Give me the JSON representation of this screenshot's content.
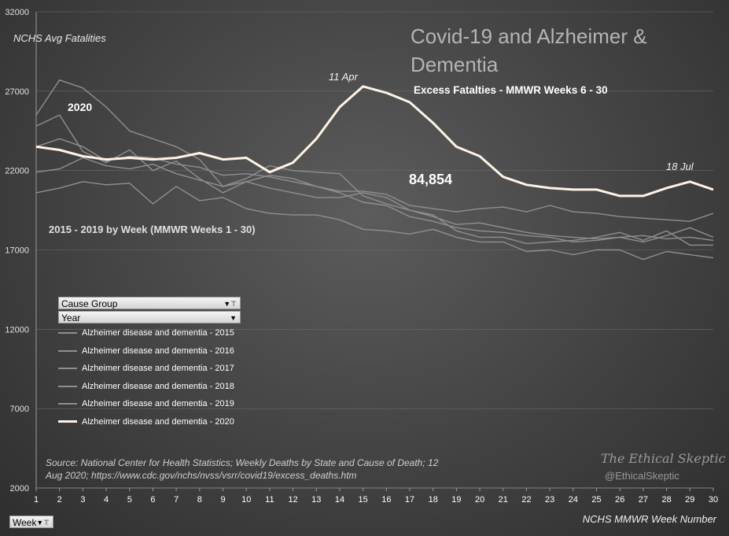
{
  "title": "Covid-19 and Alzheimer & Dementia",
  "subtitle": "Excess Fatalties - MMWR Weeks 6 - 30",
  "y_axis_label": "NCHS Avg Fatalities",
  "x_axis_label": "NCHS MMWR Week Number",
  "label_2020": "2020",
  "label_range": "2015  - 2019  by Week (MMWR Weeks 1 - 30)",
  "excess_value": "84,854",
  "annotation_peak": "11 Apr",
  "annotation_end": "18 Jul",
  "source_text": "Source:  National Center for Health Statistics;  Weekly Deaths by State and Cause of Death; 12 Aug 2020; https://www.cdc.gov/nchs/nvss/vsrr/covid19/excess_deaths.htm",
  "brand": "The Ethical Skeptic",
  "brand_handle": "@EthicalSkeptic",
  "filters": {
    "cause_group": "Cause Group",
    "year": "Year",
    "week": "Week"
  },
  "colors": {
    "highlight_2020": "#fff3e6",
    "baseline_series": "#8f8f8f"
  },
  "chart_data": {
    "type": "line",
    "title": "Covid-19 and Alzheimer & Dementia",
    "xlabel": "NCHS MMWR Week Number",
    "ylabel": "NCHS Avg Fatalities",
    "ylim": [
      2000,
      32000
    ],
    "yticks": [
      2000,
      7000,
      12000,
      17000,
      22000,
      27000,
      32000
    ],
    "x": [
      1,
      2,
      3,
      4,
      5,
      6,
      7,
      8,
      9,
      10,
      11,
      12,
      13,
      14,
      15,
      16,
      17,
      18,
      19,
      20,
      21,
      22,
      23,
      24,
      25,
      26,
      27,
      28,
      29,
      30
    ],
    "legend_position": "left",
    "series": [
      {
        "name": "Alzheimer disease and dementia - 2015",
        "values": [
          25500,
          27700,
          27200,
          26000,
          24500,
          24000,
          23500,
          22700,
          21000,
          21500,
          22300,
          22000,
          21900,
          21800,
          20400,
          19900,
          19500,
          19100,
          18600,
          18700,
          18400,
          18100,
          17900,
          17800,
          17700,
          17800,
          17900,
          17700,
          17800,
          17600
        ]
      },
      {
        "name": "Alzheimer disease and dementia - 2016",
        "values": [
          24800,
          25500,
          23200,
          22500,
          23300,
          22000,
          22600,
          21500,
          20600,
          21300,
          21700,
          21500,
          21000,
          20700,
          20700,
          20500,
          19800,
          19600,
          19400,
          19600,
          19700,
          19400,
          19800,
          19400,
          19300,
          19100,
          19000,
          18900,
          18800,
          19300
        ]
      },
      {
        "name": "Alzheimer disease and dementia - 2017",
        "values": [
          23500,
          24000,
          23500,
          22600,
          22900,
          22800,
          22400,
          22200,
          21700,
          21800,
          21600,
          21300,
          21000,
          20600,
          20000,
          19800,
          19100,
          18800,
          18400,
          18200,
          18100,
          17900,
          17800,
          17500,
          17600,
          17800,
          17500,
          17900,
          18400,
          17800
        ]
      },
      {
        "name": "Alzheimer disease and dementia - 2018",
        "values": [
          21900,
          22100,
          22800,
          22300,
          22100,
          22400,
          21800,
          21400,
          21000,
          21300,
          20900,
          20600,
          20300,
          20300,
          20600,
          20300,
          19500,
          19200,
          18200,
          17800,
          17800,
          17400,
          17500,
          17600,
          17800,
          18100,
          17600,
          18200,
          17300,
          17300
        ]
      },
      {
        "name": "Alzheimer disease and dementia - 2019",
        "values": [
          20600,
          20900,
          21300,
          21100,
          21200,
          19900,
          21000,
          20100,
          20300,
          19600,
          19300,
          19200,
          19200,
          18900,
          18300,
          18200,
          18000,
          18300,
          17800,
          17500,
          17500,
          16900,
          17000,
          16700,
          17000,
          17000,
          16400,
          16900,
          16700,
          16500
        ]
      },
      {
        "name": "Alzheimer disease and dementia - 2020",
        "highlight": true,
        "values": [
          23500,
          23300,
          22900,
          22700,
          22800,
          22700,
          22800,
          23100,
          22700,
          22800,
          21900,
          22500,
          24000,
          26000,
          27300,
          26900,
          26300,
          25000,
          23500,
          22900,
          21600,
          21100,
          20900,
          20800,
          20800,
          20400,
          20400,
          20900,
          21300,
          20800
        ]
      }
    ]
  }
}
